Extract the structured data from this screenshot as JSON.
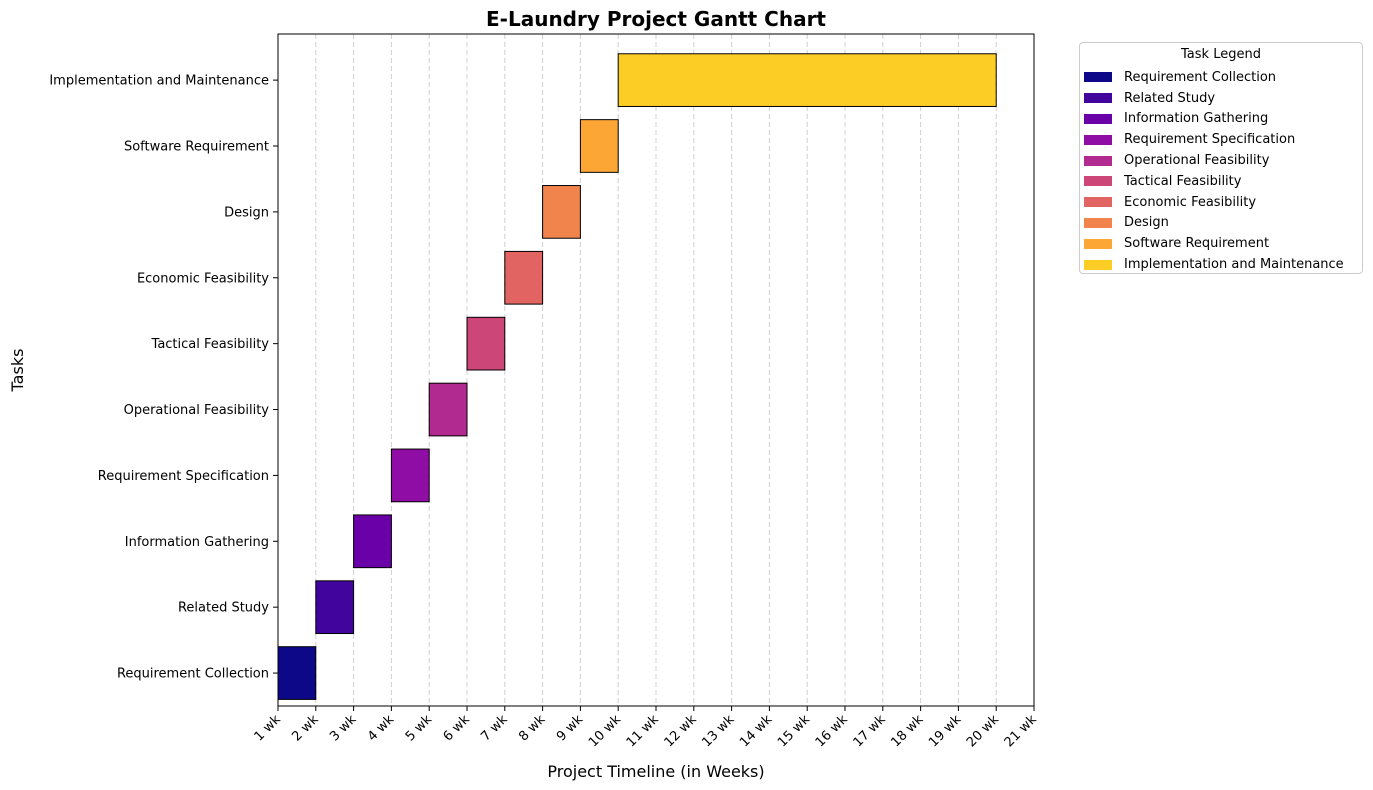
{
  "chart_data": {
    "type": "gantt",
    "title": "E-Laundry Project Gantt Chart",
    "xlabel": "Project Timeline (in Weeks)",
    "ylabel": "Tasks",
    "xlim": [
      1,
      21
    ],
    "x_ticks": [
      "1 wk",
      "2 wk",
      "3 wk",
      "4 wk",
      "5 wk",
      "6 wk",
      "7 wk",
      "8 wk",
      "9 wk",
      "10 wk",
      "11 wk",
      "12 wk",
      "13 wk",
      "14 wk",
      "15 wk",
      "16 wk",
      "17 wk",
      "18 wk",
      "19 wk",
      "20 wk",
      "21 wk"
    ],
    "grid": "vertical dashed",
    "legend_title": "Task Legend",
    "legend_placement": "outside right, top",
    "tasks": [
      {
        "name": "Requirement Collection",
        "start": 1,
        "end": 2,
        "color": "#0d0887"
      },
      {
        "name": "Related Study",
        "start": 2,
        "end": 3,
        "color": "#41049d"
      },
      {
        "name": "Information Gathering",
        "start": 3,
        "end": 4,
        "color": "#6a00a8"
      },
      {
        "name": "Requirement Specification",
        "start": 4,
        "end": 5,
        "color": "#8f0da4"
      },
      {
        "name": "Operational Feasibility",
        "start": 5,
        "end": 6,
        "color": "#b12a90"
      },
      {
        "name": "Tactical Feasibility",
        "start": 6,
        "end": 7,
        "color": "#cc4778"
      },
      {
        "name": "Economic Feasibility",
        "start": 7,
        "end": 8,
        "color": "#e16462"
      },
      {
        "name": "Design",
        "start": 8,
        "end": 9,
        "color": "#f1834c"
      },
      {
        "name": "Software Requirement",
        "start": 9,
        "end": 10,
        "color": "#fca636"
      },
      {
        "name": "Implementation and Maintenance",
        "start": 10,
        "end": 20,
        "color": "#fccd25"
      }
    ]
  }
}
